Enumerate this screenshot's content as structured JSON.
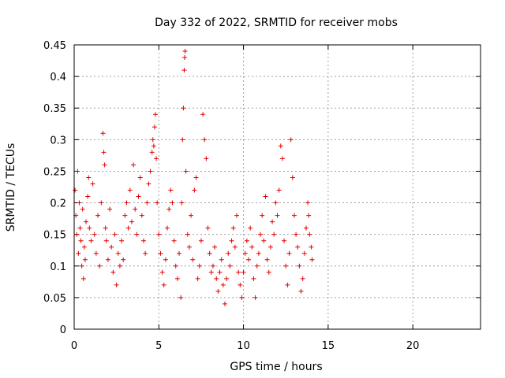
{
  "chart_data": {
    "type": "scatter",
    "title": "Day 332 of 2022, SRMTID for receiver mobs",
    "xlabel": "GPS time / hours",
    "ylabel": "SRMTID / TECUs",
    "xlim": [
      0,
      24
    ],
    "ylim": [
      0,
      0.45
    ],
    "xticks": [
      0,
      5,
      10,
      15,
      20
    ],
    "xtick_labels": [
      "0",
      "5",
      "10",
      "15",
      "20"
    ],
    "yticks": [
      0,
      0.05,
      0.1,
      0.15,
      0.2,
      0.25,
      0.3,
      0.35,
      0.4,
      0.45
    ],
    "ytick_labels": [
      "0",
      "0.05",
      "0.1",
      "0.15",
      "0.2",
      "0.25",
      "0.3",
      "0.35",
      "0.4",
      "0.45"
    ],
    "grid": true,
    "marker": "+",
    "marker_color": "#e00000",
    "series": [
      {
        "name": "mobs",
        "points": [
          [
            0.05,
            0.22
          ],
          [
            0.1,
            0.18
          ],
          [
            0.15,
            0.15
          ],
          [
            0.2,
            0.25
          ],
          [
            0.25,
            0.12
          ],
          [
            0.3,
            0.2
          ],
          [
            0.35,
            0.16
          ],
          [
            0.4,
            0.14
          ],
          [
            0.45,
            0.1
          ],
          [
            0.5,
            0.19
          ],
          [
            0.55,
            0.08
          ],
          [
            0.6,
            0.13
          ],
          [
            0.65,
            0.11
          ],
          [
            0.7,
            0.17
          ],
          [
            0.8,
            0.21
          ],
          [
            0.85,
            0.24
          ],
          [
            0.9,
            0.16
          ],
          [
            1.0,
            0.14
          ],
          [
            1.1,
            0.23
          ],
          [
            1.2,
            0.15
          ],
          [
            1.3,
            0.12
          ],
          [
            1.4,
            0.18
          ],
          [
            1.5,
            0.1
          ],
          [
            1.6,
            0.2
          ],
          [
            1.7,
            0.31
          ],
          [
            1.75,
            0.28
          ],
          [
            1.8,
            0.26
          ],
          [
            1.85,
            0.16
          ],
          [
            1.9,
            0.14
          ],
          [
            2.0,
            0.11
          ],
          [
            2.1,
            0.19
          ],
          [
            2.2,
            0.13
          ],
          [
            2.3,
            0.09
          ],
          [
            2.4,
            0.15
          ],
          [
            2.5,
            0.07
          ],
          [
            2.6,
            0.12
          ],
          [
            2.7,
            0.1
          ],
          [
            2.8,
            0.14
          ],
          [
            2.9,
            0.11
          ],
          [
            3.0,
            0.18
          ],
          [
            3.1,
            0.2
          ],
          [
            3.2,
            0.16
          ],
          [
            3.3,
            0.22
          ],
          [
            3.4,
            0.17
          ],
          [
            3.5,
            0.26
          ],
          [
            3.6,
            0.19
          ],
          [
            3.7,
            0.15
          ],
          [
            3.8,
            0.21
          ],
          [
            3.9,
            0.24
          ],
          [
            4.0,
            0.18
          ],
          [
            4.1,
            0.14
          ],
          [
            4.2,
            0.12
          ],
          [
            4.3,
            0.2
          ],
          [
            4.4,
            0.23
          ],
          [
            4.5,
            0.25
          ],
          [
            4.6,
            0.28
          ],
          [
            4.65,
            0.3
          ],
          [
            4.7,
            0.29
          ],
          [
            4.75,
            0.32
          ],
          [
            4.8,
            0.34
          ],
          [
            4.85,
            0.27
          ],
          [
            4.9,
            0.2
          ],
          [
            5.0,
            0.15
          ],
          [
            5.1,
            0.12
          ],
          [
            5.2,
            0.09
          ],
          [
            5.3,
            0.07
          ],
          [
            5.4,
            0.11
          ],
          [
            5.5,
            0.16
          ],
          [
            5.6,
            0.19
          ],
          [
            5.7,
            0.22
          ],
          [
            5.8,
            0.2
          ],
          [
            5.9,
            0.14
          ],
          [
            6.0,
            0.1
          ],
          [
            6.1,
            0.08
          ],
          [
            6.2,
            0.12
          ],
          [
            6.3,
            0.05
          ],
          [
            6.35,
            0.2
          ],
          [
            6.4,
            0.3
          ],
          [
            6.45,
            0.35
          ],
          [
            6.5,
            0.41
          ],
          [
            6.52,
            0.43
          ],
          [
            6.55,
            0.44
          ],
          [
            6.6,
            0.25
          ],
          [
            6.7,
            0.15
          ],
          [
            6.8,
            0.13
          ],
          [
            6.9,
            0.18
          ],
          [
            7.0,
            0.11
          ],
          [
            7.1,
            0.22
          ],
          [
            7.2,
            0.24
          ],
          [
            7.3,
            0.08
          ],
          [
            7.4,
            0.1
          ],
          [
            7.5,
            0.14
          ],
          [
            7.6,
            0.34
          ],
          [
            7.7,
            0.3
          ],
          [
            7.8,
            0.27
          ],
          [
            7.9,
            0.16
          ],
          [
            8.0,
            0.12
          ],
          [
            8.1,
            0.09
          ],
          [
            8.2,
            0.1
          ],
          [
            8.3,
            0.13
          ],
          [
            8.4,
            0.08
          ],
          [
            8.5,
            0.06
          ],
          [
            8.6,
            0.09
          ],
          [
            8.7,
            0.11
          ],
          [
            8.8,
            0.07
          ],
          [
            8.9,
            0.04
          ],
          [
            9.0,
            0.08
          ],
          [
            9.1,
            0.12
          ],
          [
            9.2,
            0.1
          ],
          [
            9.3,
            0.14
          ],
          [
            9.4,
            0.16
          ],
          [
            9.5,
            0.13
          ],
          [
            9.6,
            0.18
          ],
          [
            9.7,
            0.09
          ],
          [
            9.8,
            0.07
          ],
          [
            9.9,
            0.05
          ],
          [
            10.0,
            0.09
          ],
          [
            10.1,
            0.12
          ],
          [
            10.2,
            0.14
          ],
          [
            10.3,
            0.11
          ],
          [
            10.4,
            0.16
          ],
          [
            10.5,
            0.13
          ],
          [
            10.6,
            0.08
          ],
          [
            10.7,
            0.05
          ],
          [
            10.8,
            0.1
          ],
          [
            10.9,
            0.12
          ],
          [
            11.0,
            0.15
          ],
          [
            11.1,
            0.18
          ],
          [
            11.2,
            0.14
          ],
          [
            11.3,
            0.21
          ],
          [
            11.4,
            0.11
          ],
          [
            11.5,
            0.09
          ],
          [
            11.6,
            0.13
          ],
          [
            11.7,
            0.17
          ],
          [
            11.8,
            0.15
          ],
          [
            11.9,
            0.2
          ],
          [
            12.0,
            0.18
          ],
          [
            12.1,
            0.22
          ],
          [
            12.2,
            0.29
          ],
          [
            12.3,
            0.27
          ],
          [
            12.4,
            0.14
          ],
          [
            12.5,
            0.1
          ],
          [
            12.6,
            0.07
          ],
          [
            12.7,
            0.12
          ],
          [
            12.8,
            0.3
          ],
          [
            12.9,
            0.24
          ],
          [
            13.0,
            0.18
          ],
          [
            13.1,
            0.15
          ],
          [
            13.2,
            0.13
          ],
          [
            13.3,
            0.1
          ],
          [
            13.4,
            0.06
          ],
          [
            13.5,
            0.08
          ],
          [
            13.6,
            0.12
          ],
          [
            13.7,
            0.16
          ],
          [
            13.8,
            0.2
          ],
          [
            13.85,
            0.18
          ],
          [
            13.9,
            0.15
          ],
          [
            14.0,
            0.13
          ],
          [
            14.05,
            0.11
          ]
        ]
      }
    ]
  }
}
